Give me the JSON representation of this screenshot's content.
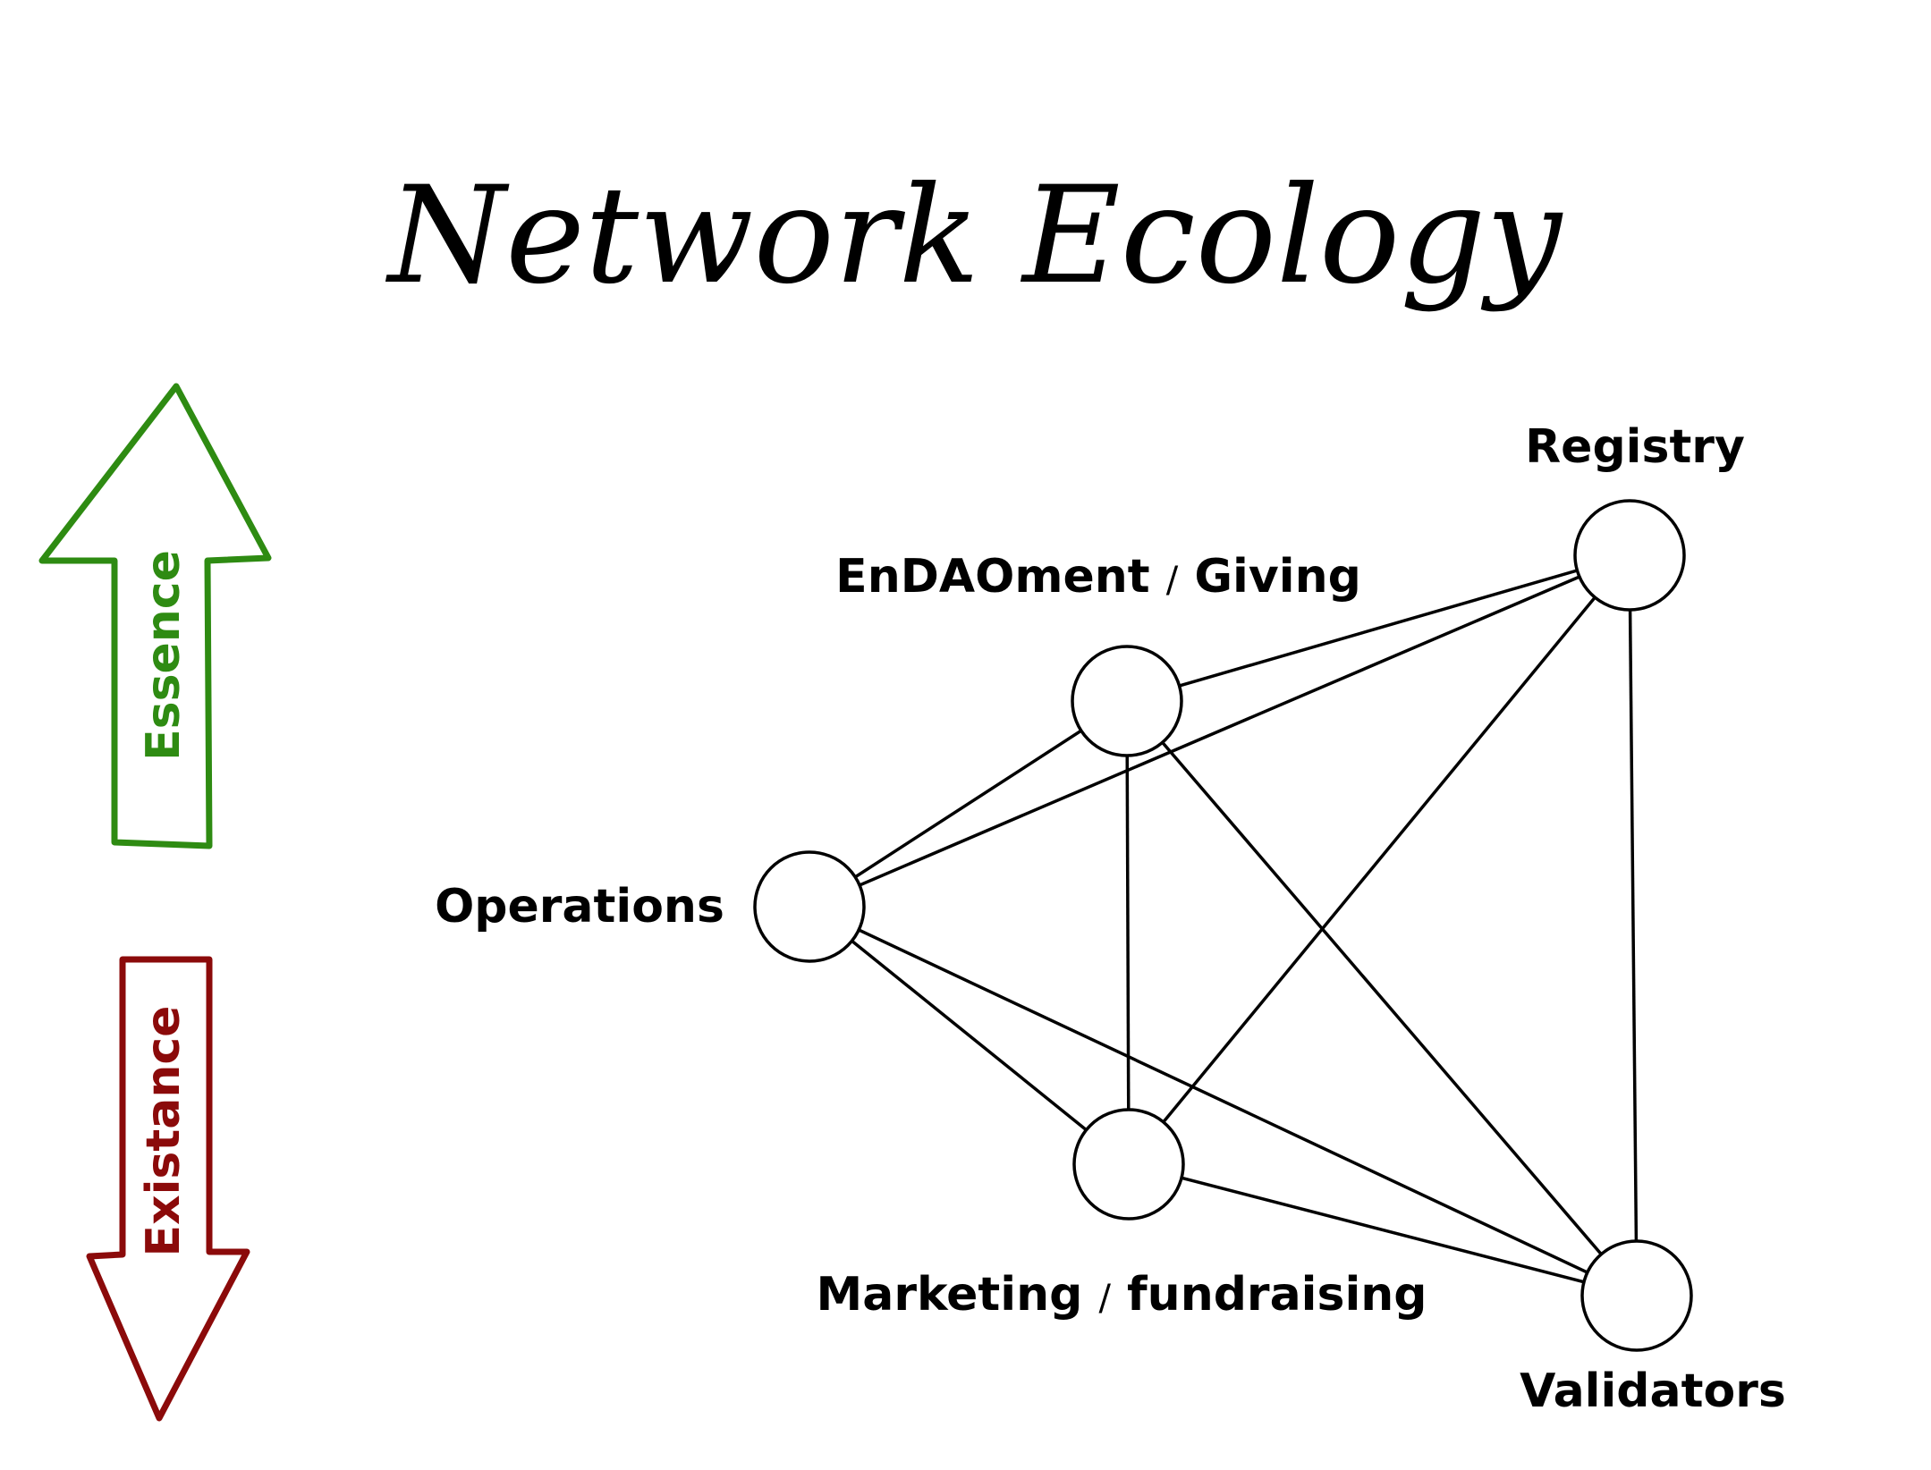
{
  "title": "Network Ecology",
  "arrows": {
    "up": {
      "label": "Essence",
      "color": "#2e8b12"
    },
    "down": {
      "label": "Existance",
      "color": "#8b0a0a"
    }
  },
  "nodes": {
    "endaoment": {
      "label_part1": "EnDAOment",
      "separator": "/",
      "label_part2": "Giving"
    },
    "registry": {
      "label": "Registry"
    },
    "operations": {
      "label": "Operations"
    },
    "marketing": {
      "label_part1": "Marketing",
      "separator": "/",
      "label_part2": "fundraising"
    },
    "validators": {
      "label": "Validators"
    }
  },
  "edges": [
    [
      "endaoment",
      "registry"
    ],
    [
      "endaoment",
      "operations"
    ],
    [
      "endaoment",
      "marketing"
    ],
    [
      "endaoment",
      "validators"
    ],
    [
      "registry",
      "operations"
    ],
    [
      "registry",
      "marketing"
    ],
    [
      "registry",
      "validators"
    ],
    [
      "operations",
      "marketing"
    ],
    [
      "operations",
      "validators"
    ],
    [
      "marketing",
      "validators"
    ]
  ]
}
